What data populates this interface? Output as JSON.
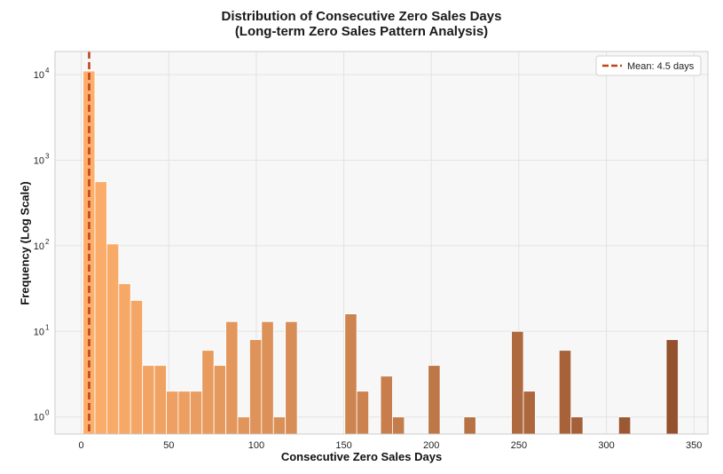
{
  "chart_data": {
    "type": "bar",
    "title_lines": [
      "Distribution of Consecutive Zero Sales Days",
      "(Long-term Zero Sales Pattern Analysis)"
    ],
    "xlabel": "Consecutive Zero Sales Days",
    "ylabel": "Frequency (Log Scale)",
    "y_scale": "log",
    "xlim": [
      -15,
      358
    ],
    "ylim_log10": [
      -0.2,
      4.27
    ],
    "x_ticks": [
      0,
      50,
      100,
      150,
      200,
      250,
      300,
      350
    ],
    "y_ticks": [
      {
        "value": 1,
        "base": "10",
        "exp": "0"
      },
      {
        "value": 10,
        "base": "10",
        "exp": "1"
      },
      {
        "value": 100,
        "base": "10",
        "exp": "2"
      },
      {
        "value": 1000,
        "base": "10",
        "exp": "3"
      },
      {
        "value": 10000,
        "base": "10",
        "exp": "4"
      }
    ],
    "grid": true,
    "bin_width": 6.8,
    "bins": [
      {
        "x": 1.0,
        "value": 11000
      },
      {
        "x": 7.8,
        "value": 560
      },
      {
        "x": 14.6,
        "value": 105
      },
      {
        "x": 21.4,
        "value": 36
      },
      {
        "x": 28.2,
        "value": 23
      },
      {
        "x": 35.0,
        "value": 4
      },
      {
        "x": 41.8,
        "value": 4
      },
      {
        "x": 48.6,
        "value": 2
      },
      {
        "x": 55.4,
        "value": 2
      },
      {
        "x": 62.2,
        "value": 2
      },
      {
        "x": 69.0,
        "value": 6
      },
      {
        "x": 75.8,
        "value": 4
      },
      {
        "x": 82.6,
        "value": 13
      },
      {
        "x": 89.4,
        "value": 1
      },
      {
        "x": 96.2,
        "value": 8
      },
      {
        "x": 103.0,
        "value": 13
      },
      {
        "x": 109.8,
        "value": 1
      },
      {
        "x": 116.6,
        "value": 13
      },
      {
        "x": 150.6,
        "value": 16
      },
      {
        "x": 157.4,
        "value": 2
      },
      {
        "x": 171.0,
        "value": 3
      },
      {
        "x": 177.8,
        "value": 1
      },
      {
        "x": 198.2,
        "value": 4
      },
      {
        "x": 218.6,
        "value": 1
      },
      {
        "x": 245.8,
        "value": 10
      },
      {
        "x": 252.6,
        "value": 2
      },
      {
        "x": 273.0,
        "value": 6
      },
      {
        "x": 279.8,
        "value": 1
      },
      {
        "x": 307.0,
        "value": 1
      },
      {
        "x": 334.2,
        "value": 8
      }
    ],
    "color_start": "#fdae6b",
    "color_end": "#8c4a2a",
    "mean": {
      "value": 4.5,
      "label": "Mean: 4.5 days",
      "color": "#c1421b"
    },
    "legend_position": "top-right",
    "plot_background": "#f7f7f7",
    "grid_color": "#e3e3e3"
  }
}
